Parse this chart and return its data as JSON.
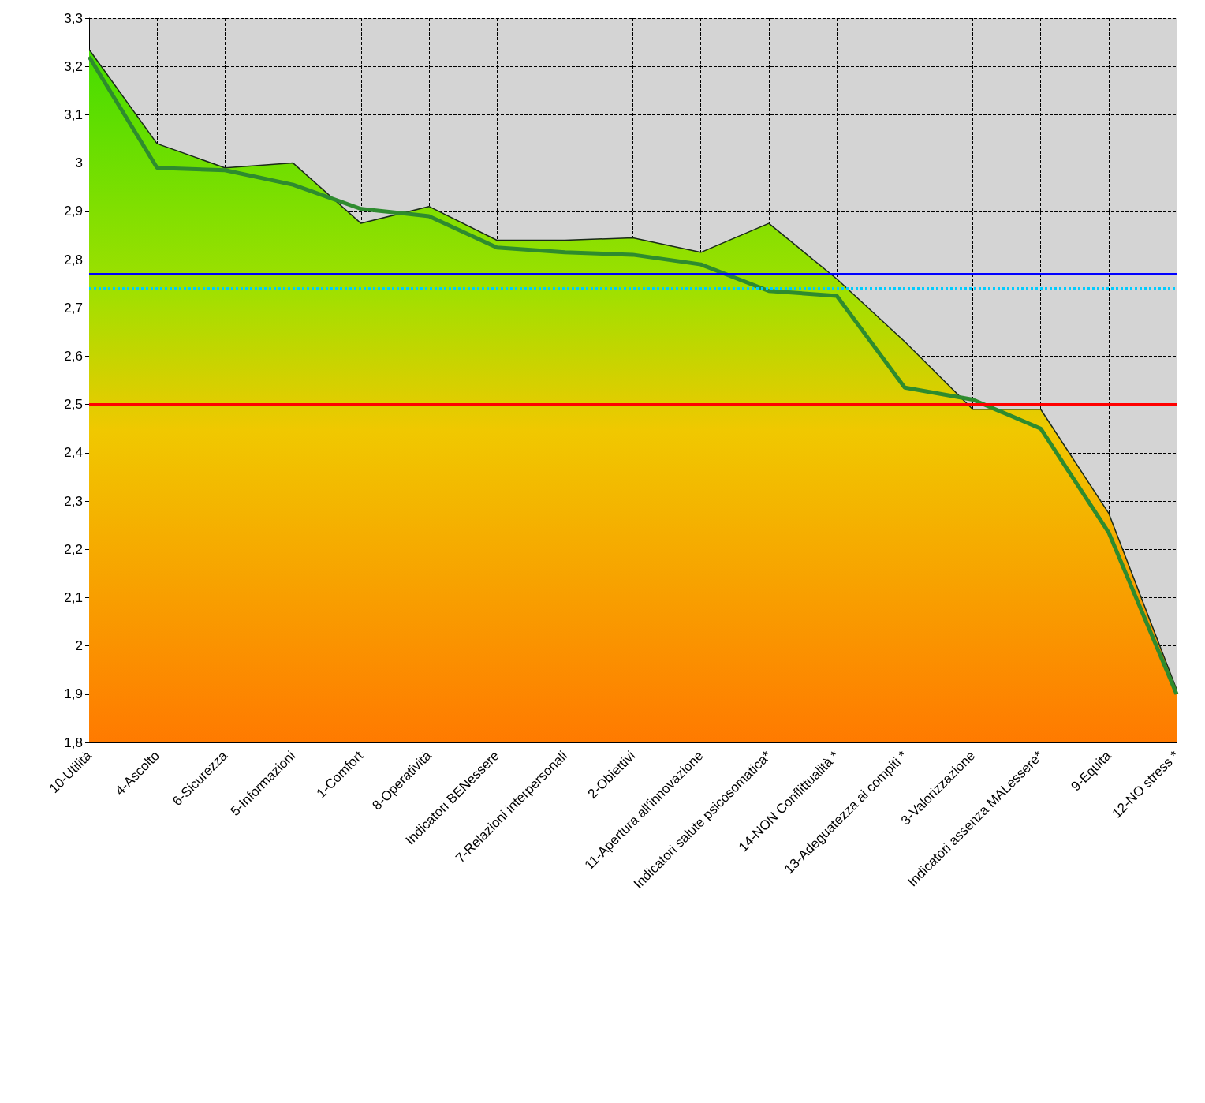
{
  "chart_data": {
    "type": "area",
    "categories": [
      "10-Utilità",
      "4-Ascolto",
      "6-Sicurezza",
      "5-Informazioni",
      "1-Comfort",
      "8-Operatività",
      "Indicatori BENessere",
      "7-Relazioni interpersonali",
      "2-Obiettivi",
      "11-Apertura all'innovazione",
      "Indicatori salute psicosomatica*",
      "14-NON Conflittualità *",
      "13-Adeguatezza ai compiti *",
      "3-Valorizzazione",
      "Indicatori assenza MALessere*",
      "9-Equità",
      "12-NO stress *"
    ],
    "series": [
      {
        "type": "area",
        "values": [
          3.235,
          3.04,
          2.99,
          3.0,
          2.875,
          2.91,
          2.84,
          2.84,
          2.845,
          2.815,
          2.875,
          2.76,
          2.63,
          2.49,
          2.49,
          2.275,
          1.91
        ]
      },
      {
        "type": "line",
        "color": "#2e8b2e",
        "values": [
          3.22,
          2.99,
          2.985,
          2.955,
          2.905,
          2.89,
          2.825,
          2.815,
          2.81,
          2.79,
          2.735,
          2.725,
          2.535,
          2.51,
          2.45,
          2.235,
          1.9
        ]
      }
    ],
    "ylim": [
      1.8,
      3.3
    ],
    "yticks": [
      {
        "value": 1.8,
        "label": "1,8"
      },
      {
        "value": 1.9,
        "label": "1,9"
      },
      {
        "value": 2.0,
        "label": "2"
      },
      {
        "value": 2.1,
        "label": "2,1"
      },
      {
        "value": 2.2,
        "label": "2,2"
      },
      {
        "value": 2.3,
        "label": "2,3"
      },
      {
        "value": 2.4,
        "label": "2,4"
      },
      {
        "value": 2.5,
        "label": "2,5"
      },
      {
        "value": 2.6,
        "label": "2,6"
      },
      {
        "value": 2.7,
        "label": "2,7"
      },
      {
        "value": 2.8,
        "label": "2,8"
      },
      {
        "value": 2.9,
        "label": "2,9"
      },
      {
        "value": 3.0,
        "label": "3"
      },
      {
        "value": 3.1,
        "label": "3,1"
      },
      {
        "value": 3.2,
        "label": "3,2"
      },
      {
        "value": 3.3,
        "label": "3,3"
      }
    ],
    "ref_lines": [
      {
        "axis": "y",
        "value": 2.77,
        "color": "#0000ff",
        "line_style": "solid"
      },
      {
        "axis": "y",
        "value": 2.74,
        "color": "#00ccff",
        "line_style": "dotted"
      },
      {
        "axis": "y",
        "value": 2.5,
        "color": "#ff0000",
        "line_style": "solid"
      }
    ],
    "grid": true,
    "marker": "none",
    "line_style": "solid"
  }
}
